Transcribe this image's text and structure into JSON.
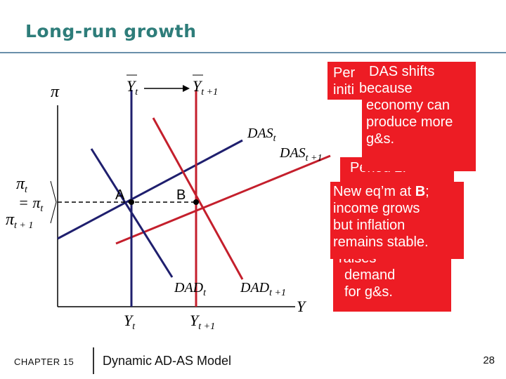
{
  "title": "Long-run growth",
  "footer": {
    "chapter": "CHAPTER 15",
    "subtitle": "Dynamic AD-AS Model",
    "page": "28"
  },
  "labels": {
    "pi_axis": "π",
    "y_axis": "Y",
    "ybar_t": "Y",
    "ybar_t_sub": "t",
    "ybar_t1": "Y",
    "ybar_t1_sub": "t +1",
    "pi_t": "π",
    "pi_t_sub": "t",
    "eq_pi": "= π",
    "eq_pi_sub": "t",
    "pi_t1": "π",
    "pi_t1_sub": "t + 1",
    "das_t": "DAS",
    "das_t_sub": "t",
    "das_t1": "DAS",
    "das_t1_sub": "t +1",
    "dad_t": "DAD",
    "dad_t_sub": "t",
    "dad_t1": "DAD",
    "dad_t1_sub": "t +1",
    "y_t": "Y",
    "y_t_sub": "t",
    "y_t1": "Y",
    "y_t1_sub": "t +1",
    "point_a": "A",
    "point_b": "B"
  },
  "boxes": {
    "back_peek_1": "Per",
    "back_peek_2": "initi",
    "das_shift": [
      "DAS shifts",
      "because",
      "economy can",
      "produce more",
      "g&s."
    ],
    "period_peek": "Period  2:",
    "new_eq_prefix": "New eq’m at ",
    "new_eq_bold": "B",
    "new_eq_suffix": ";",
    "new_eq_lines": [
      "income grows",
      "but inflation",
      "remains stable."
    ],
    "back_peek_3": "raises",
    "demand_lines": [
      "demand",
      "for g&s."
    ]
  },
  "colors": {
    "title": "#2e7d7a",
    "navy": "#1f1f6e",
    "red": "#c41f2c",
    "box": "#ed1c24"
  }
}
